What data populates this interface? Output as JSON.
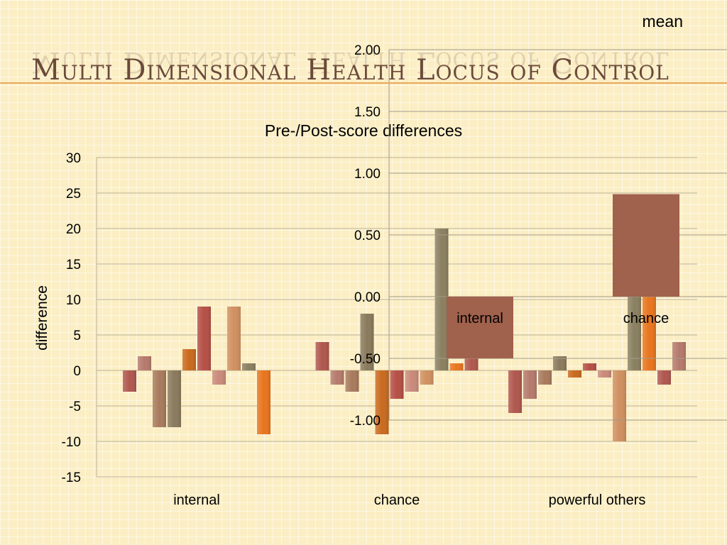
{
  "slide": {
    "title": "Multi Dimensional Health Locus of Control"
  },
  "chart_data": [
    {
      "type": "bar",
      "title": "Pre-/Post-score differences",
      "ylabel": "difference",
      "xlabel": "",
      "ylim": [
        -15,
        30
      ],
      "yticks": [
        "30",
        "25",
        "20",
        "15",
        "10",
        "5",
        "0",
        "-5",
        "-10",
        "-15"
      ],
      "categories": [
        "internal",
        "chance",
        "powerful others"
      ],
      "grid": true,
      "colors": [
        "#b0574e",
        "#b57a6c",
        "#a87a5c",
        "#8a7a5c",
        "#c96a1e",
        "#b54f45",
        "#c98a7a",
        "#d09060",
        "#8a8060",
        "#e8751e"
      ],
      "groups": [
        {
          "category": "internal",
          "values": [
            -3,
            2,
            -8,
            -8,
            3,
            9,
            -2,
            9,
            1,
            -9
          ]
        },
        {
          "category": "chance",
          "values": [
            4,
            -2,
            -3,
            8,
            -9,
            -4,
            -3,
            -2,
            20,
            1,
            5
          ]
        },
        {
          "category": "powerful others",
          "values": [
            -6,
            -4,
            -2,
            2,
            -1,
            1,
            -1,
            -10,
            21,
            13,
            -2,
            4
          ]
        }
      ]
    },
    {
      "type": "bar",
      "series_label": "mean",
      "ylim": [
        -1.0,
        2.0
      ],
      "yticks": [
        "2.00",
        "1.50",
        "1.00",
        "0.50",
        "0.00",
        "-0.50",
        "-1.00"
      ],
      "grid": true,
      "color": "#a0614d",
      "categories": [
        "internal",
        "chance"
      ],
      "values": [
        -0.5,
        0.83
      ]
    }
  ]
}
